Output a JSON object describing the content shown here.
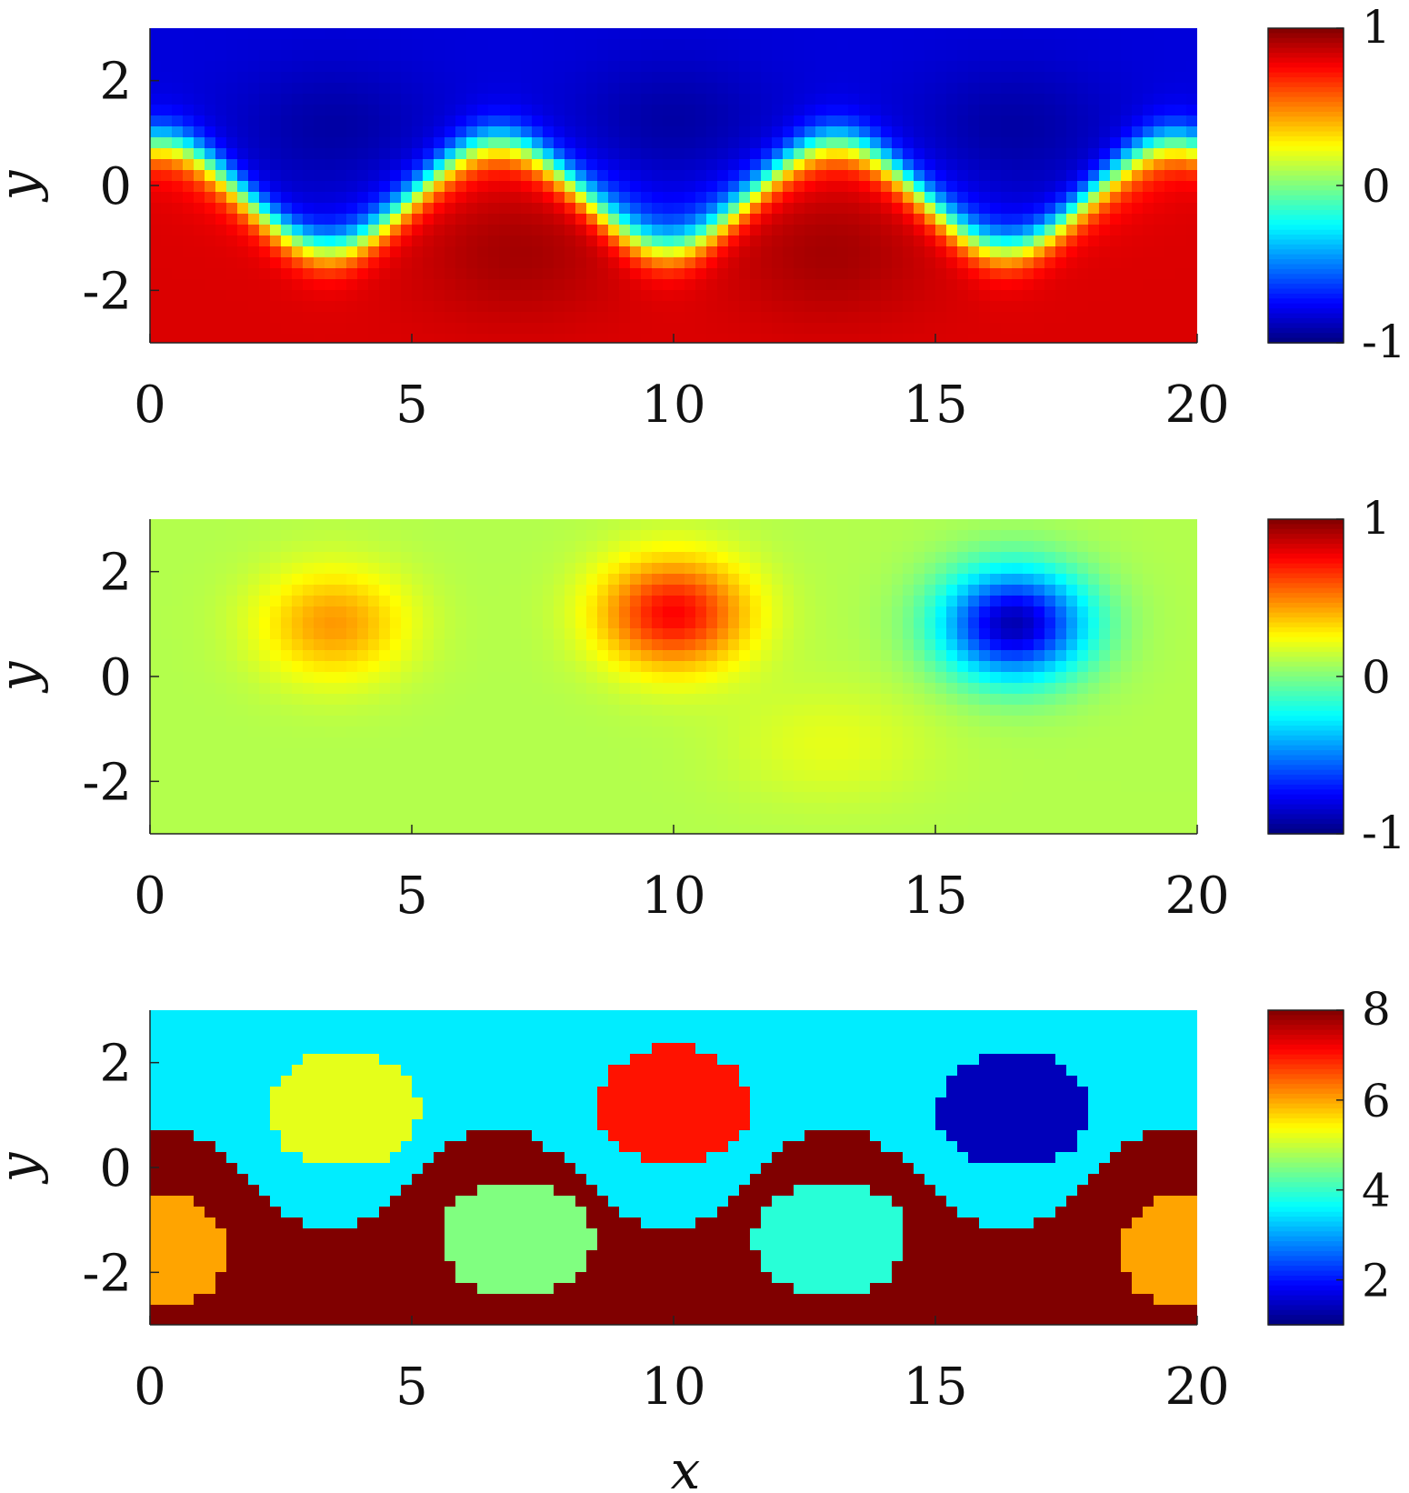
{
  "chart_data": [
    {
      "type": "heatmap",
      "panel": "top",
      "xlabel": "",
      "ylabel": "y",
      "xlim": [
        0,
        20
      ],
      "ylim": [
        -3,
        3
      ],
      "x_ticks": [
        "0",
        "5",
        "10",
        "15",
        "20"
      ],
      "y_ticks": [
        "2",
        "0",
        "-2"
      ],
      "colorbar": {
        "min": -1,
        "max": 1,
        "ticks": [
          "1",
          "0",
          "-1"
        ],
        "colormap": "jet"
      },
      "field": {
        "description": "sinusoidal interface separating two phases",
        "interface": {
          "center_y": -0.45,
          "amplitude": 1.05,
          "period": 6.3,
          "phase_x": 0.15
        },
        "upper_value": -0.85,
        "lower_value": 0.85,
        "vortices": [
          {
            "x": 3.5,
            "y": 1.1,
            "value": -1.0
          },
          {
            "x": 10.0,
            "y": 1.2,
            "value": -1.0
          },
          {
            "x": 16.5,
            "y": 1.1,
            "value": -1.0
          },
          {
            "x": 7.0,
            "y": -1.3,
            "value": 1.0
          },
          {
            "x": 13.0,
            "y": -1.3,
            "value": 1.0
          }
        ]
      }
    },
    {
      "type": "heatmap",
      "panel": "middle",
      "xlabel": "",
      "ylabel": "y",
      "xlim": [
        0,
        20
      ],
      "ylim": [
        -3,
        3
      ],
      "x_ticks": [
        "0",
        "5",
        "10",
        "15",
        "20"
      ],
      "y_ticks": [
        "2",
        "0",
        "-2"
      ],
      "colorbar": {
        "min": -1,
        "max": 1,
        "ticks": [
          "1",
          "0",
          "-1"
        ],
        "colormap": "jet"
      },
      "field": {
        "background_value": 0.1,
        "blobs": [
          {
            "x": 3.5,
            "y": 1.0,
            "value": 0.45
          },
          {
            "x": 10.0,
            "y": 1.2,
            "value": 0.75
          },
          {
            "x": 16.5,
            "y": 1.0,
            "value": -0.9
          },
          {
            "x": 13.0,
            "y": -1.3,
            "value": 0.2
          }
        ]
      }
    },
    {
      "type": "heatmap",
      "panel": "bottom",
      "xlabel": "x",
      "ylabel": "y",
      "xlim": [
        0,
        20
      ],
      "ylim": [
        -3,
        3
      ],
      "x_ticks": [
        "0",
        "5",
        "10",
        "15",
        "20"
      ],
      "y_ticks": [
        "2",
        "0",
        "-2"
      ],
      "colorbar": {
        "min": 1,
        "max": 8,
        "ticks": [
          "8",
          "6",
          "4",
          "2"
        ],
        "colormap": "jet"
      },
      "field": {
        "description": "cluster labels",
        "upper_region_label": 3.5,
        "lower_region_label": 8,
        "blobs": [
          {
            "x": 3.7,
            "y": 1.1,
            "label": 5.2
          },
          {
            "x": 10.0,
            "y": 1.2,
            "label": 7.0
          },
          {
            "x": 16.5,
            "y": 1.1,
            "label": 1.4
          },
          {
            "x": 7.0,
            "y": -1.35,
            "label": 4.5
          },
          {
            "x": 13.0,
            "y": -1.35,
            "label": 3.9
          },
          {
            "x": 0.0,
            "y": -1.6,
            "label": 6.0
          },
          {
            "x": 20.0,
            "y": -1.6,
            "label": 6.0
          }
        ]
      }
    }
  ]
}
